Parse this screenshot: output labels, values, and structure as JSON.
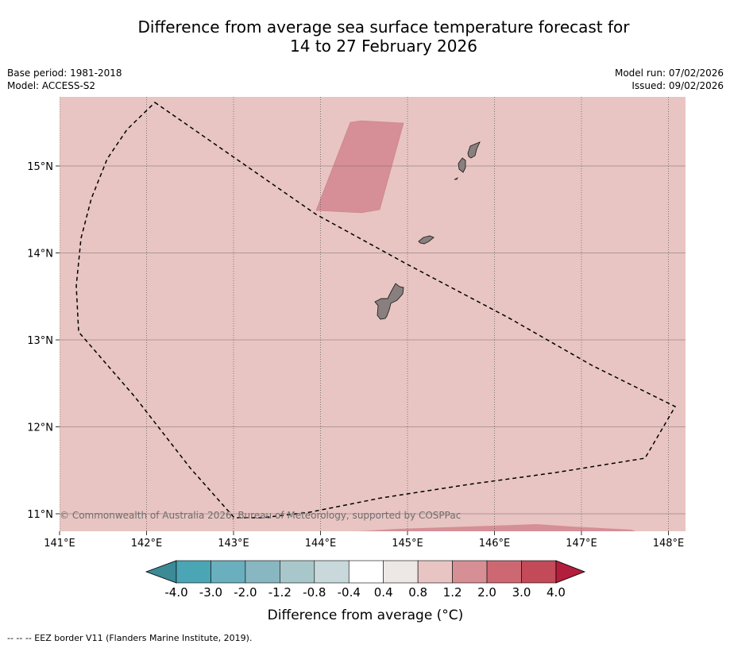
{
  "title_line1": "Difference from average sea surface temperature forecast for",
  "title_line2": "14 to 27 February 2026",
  "meta": {
    "base_period": "Base period: 1981-2018",
    "model": "Model: ACCESS-S2",
    "model_run": "Model run: 07/02/2026",
    "issued": "Issued: 09/02/2026"
  },
  "map": {
    "lon_ticks": [
      "141°E",
      "142°E",
      "143°E",
      "144°E",
      "145°E",
      "146°E",
      "147°E",
      "148°E"
    ],
    "lat_ticks": [
      "15°N",
      "14°N",
      "13°N",
      "12°N",
      "11°N"
    ],
    "lon_range": [
      141,
      148.2
    ],
    "lat_range": [
      10.8,
      15.8
    ],
    "background_category": "0.8 to 1.2",
    "copyright": "© Commonwealth of Australia 2026, Bureau of Meteorology, supported by COSPPac",
    "land_color": "#8a7f7f"
  },
  "colorbar": {
    "boundaries": [
      "-4.0",
      "-3.0",
      "-2.0",
      "-1.2",
      "-0.8",
      "-0.4",
      "0.4",
      "0.8",
      "1.2",
      "2.0",
      "3.0",
      "4.0"
    ],
    "colors": [
      "#4aa5b5",
      "#6aafbe",
      "#88b7c2",
      "#a8c7ca",
      "#c8d8db",
      "#ffffff",
      "#ede7e5",
      "#e8c5c2",
      "#d78f96",
      "#cd6873",
      "#c34a58"
    ],
    "under_color": "#3c8a96",
    "over_color": "#b31e3c",
    "label": "Difference from average (°C)"
  },
  "footer": "--  --  -- EEZ border V11 (Flanders Marine Institute, 2019)."
}
